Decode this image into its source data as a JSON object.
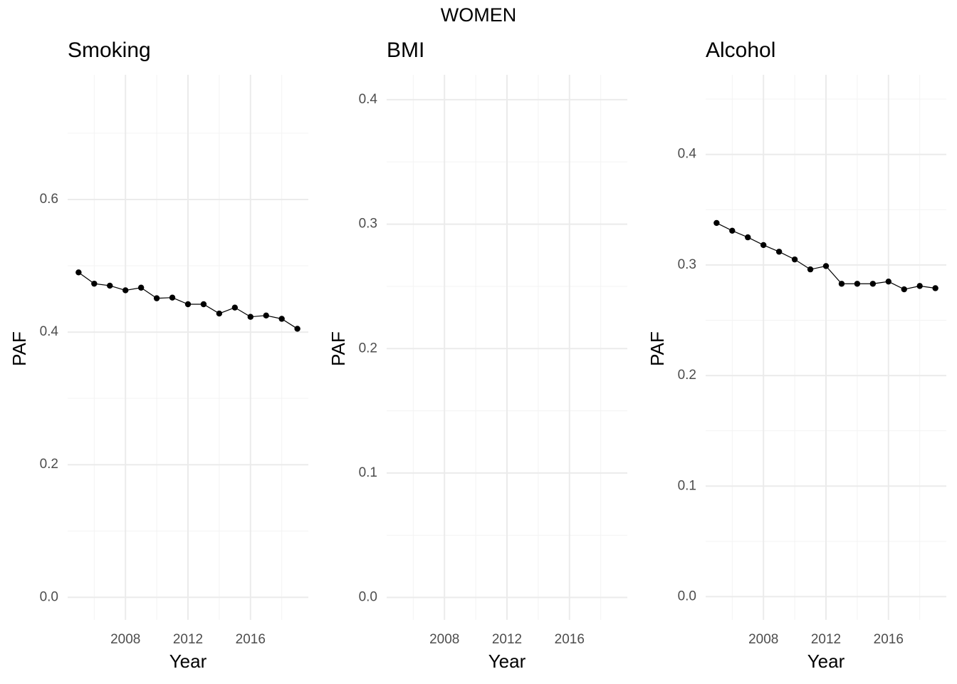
{
  "title": "WOMEN",
  "chart_data": [
    {
      "type": "line",
      "title": "Smoking",
      "x_label": "Year",
      "y_label": "PAF",
      "x": [
        2005,
        2006,
        2007,
        2008,
        2009,
        2010,
        2011,
        2012,
        2013,
        2014,
        2015,
        2016,
        2017,
        2018,
        2019
      ],
      "series": [
        {
          "color": "#000000",
          "values": [
            0.49,
            0.473,
            0.47,
            0.463,
            0.467,
            0.451,
            0.452,
            0.442,
            0.442,
            0.428,
            0.437,
            0.423,
            0.425,
            0.42,
            0.405
          ]
        }
      ],
      "xlim": [
        2004.3,
        2019.7
      ],
      "xticks": [
        2008,
        2012,
        2016
      ],
      "minor_xticks": [
        2006,
        2010,
        2014,
        2018
      ],
      "ylim": [
        -0.034,
        0.788
      ],
      "yticks": [
        {
          "value": 0,
          "label": "0.0"
        },
        0.2,
        0.4,
        0.6
      ],
      "minor_yticks": [
        0.1,
        0.3,
        0.5,
        0.7
      ],
      "grid": true
    },
    {
      "type": "line",
      "title": "BMI",
      "x_label": "Year",
      "y_label": "PAF",
      "series": [],
      "xlim": [
        2004.3,
        2019.7
      ],
      "xticks": [
        2008,
        2012,
        2016
      ],
      "minor_xticks": [
        2006,
        2010,
        2014,
        2018
      ],
      "ylim": [
        -0.018,
        0.42
      ],
      "yticks": [
        {
          "value": 0,
          "label": "0.0"
        },
        0.1,
        0.2,
        0.3,
        0.4
      ],
      "minor_yticks": [
        0.05,
        0.15,
        0.25,
        0.35
      ],
      "grid": true
    },
    {
      "type": "line",
      "title": "Alcohol",
      "x_label": "Year",
      "y_label": "PAF",
      "x": [
        2005,
        2006,
        2007,
        2008,
        2009,
        2010,
        2011,
        2012,
        2013,
        2014,
        2015,
        2016,
        2017,
        2018,
        2019
      ],
      "series": [
        {
          "color": "#000000",
          "values": [
            0.338,
            0.331,
            0.325,
            0.318,
            0.312,
            0.305,
            0.296,
            0.299,
            0.283,
            0.283,
            0.283,
            0.285,
            0.278,
            0.281,
            0.279
          ]
        }
      ],
      "xlim": [
        2004.3,
        2019.7
      ],
      "xticks": [
        2008,
        2012,
        2016
      ],
      "minor_xticks": [
        2006,
        2010,
        2014,
        2018
      ],
      "ylim": [
        -0.021,
        0.472
      ],
      "yticks": [
        {
          "value": 0,
          "label": "0.0"
        },
        0.1,
        0.2,
        0.3,
        0.4
      ],
      "minor_yticks": [
        0.05,
        0.15,
        0.25,
        0.35,
        0.45
      ],
      "grid": true
    }
  ]
}
